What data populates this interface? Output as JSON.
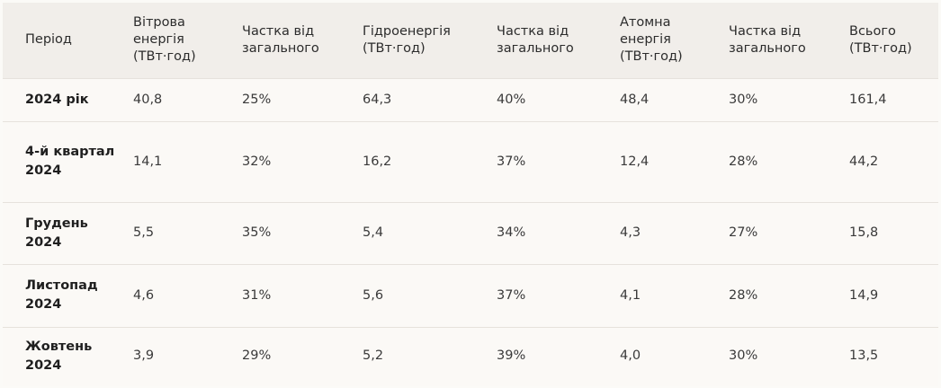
{
  "table": {
    "headers": [
      "Період",
      "Вітрова енергія (ТВт·год)",
      "Частка від загального",
      "Гідроенергія (ТВт·год)",
      "Частка від загального",
      "Атомна енергія (ТВт·год)",
      "Частка від загального",
      "Всього (ТВт·год)"
    ],
    "rows": [
      [
        "2024 рік",
        "40,8",
        "25%",
        "64,3",
        "40%",
        "48,4",
        "30%",
        "161,4"
      ],
      [
        "4-й квартал 2024",
        "14,1",
        "32%",
        "16,2",
        "37%",
        "12,4",
        "28%",
        "44,2"
      ],
      [
        "Грудень 2024",
        "5,5",
        "35%",
        "5,4",
        "34%",
        "4,3",
        "27%",
        "15,8"
      ],
      [
        "Листопад 2024",
        "4,6",
        "31%",
        "5,6",
        "37%",
        "4,1",
        "28%",
        "14,9"
      ],
      [
        "Жовтень 2024",
        "3,9",
        "29%",
        "5,2",
        "39%",
        "4,0",
        "30%",
        "13,5"
      ]
    ]
  }
}
